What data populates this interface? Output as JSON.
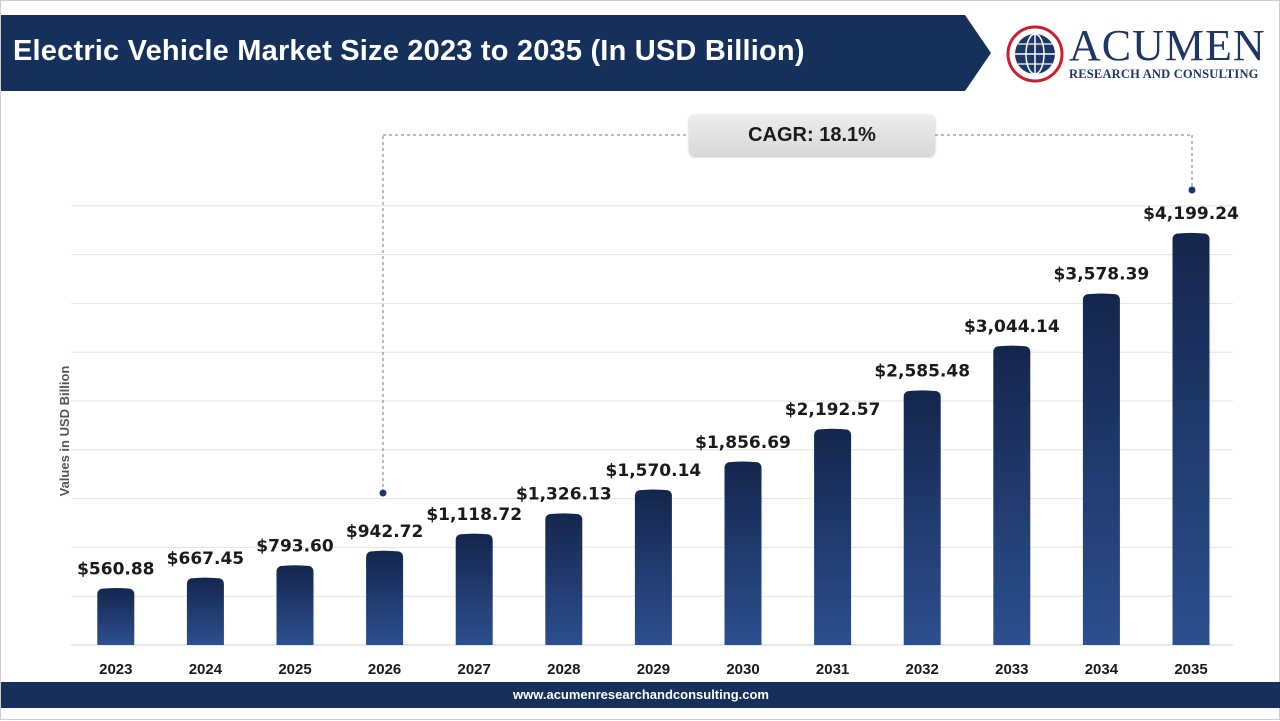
{
  "header": {
    "title": "Electric Vehicle Market Size 2023 to 2035 (In USD Billion)"
  },
  "brand": {
    "name": "ACUMEN",
    "subtitle": "RESEARCH AND CONSULTING",
    "logo_icon": "globe-icon"
  },
  "annotation": {
    "cagr": "CAGR: 18.1%"
  },
  "footer": {
    "url": "www.acumenresearchandconsulting.com"
  },
  "colors": {
    "header_bg": "#16305c",
    "bar_top": "#14264d",
    "bar_bottom": "#2c4f8f",
    "grid": "#e3e3e3",
    "brand_red": "#c8202f"
  },
  "chart_data": {
    "type": "bar",
    "title": "Electric Vehicle Market Size 2023 to 2035 (In USD Billion)",
    "ylabel": "Values in USD Billion",
    "xlabel": "",
    "categories": [
      "2023",
      "2024",
      "2025",
      "2026",
      "2027",
      "2028",
      "2029",
      "2030",
      "2031",
      "2032",
      "2033",
      "2034",
      "2035"
    ],
    "values": [
      560.88,
      667.45,
      793.6,
      942.72,
      1118.72,
      1326.13,
      1570.14,
      1856.69,
      2192.57,
      2585.48,
      3044.14,
      3578.39,
      4199.24
    ],
    "data_labels": [
      "$560.88",
      "$667.45",
      "$793.60",
      "$942.72",
      "$1,118.72",
      "$1,326.13",
      "$1,570.14",
      "$1,856.69",
      "$2,192.57",
      "$2,585.48",
      "$3,044.14",
      "$3,578.39",
      "$4,199.24"
    ],
    "ylim": [
      0,
      5000
    ],
    "grid": true,
    "legend": "none",
    "cagr_span": [
      "2026",
      "2035"
    ]
  }
}
